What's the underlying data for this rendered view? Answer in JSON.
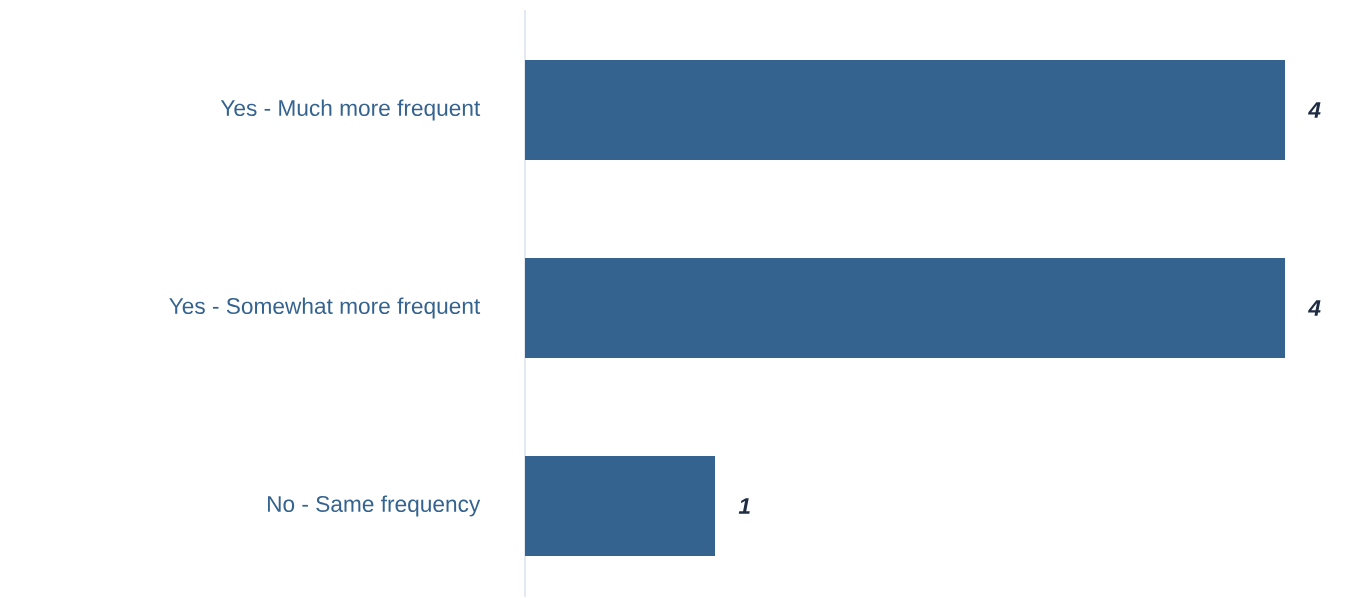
{
  "chart_data": {
    "type": "bar",
    "orientation": "horizontal",
    "categories": [
      "Yes - Much more frequent",
      "Yes - Somewhat more frequent",
      "No - Same frequency"
    ],
    "values": [
      4,
      4,
      1
    ],
    "color": "#35638f",
    "data_labels": true,
    "tick_labels": "y"
  }
}
